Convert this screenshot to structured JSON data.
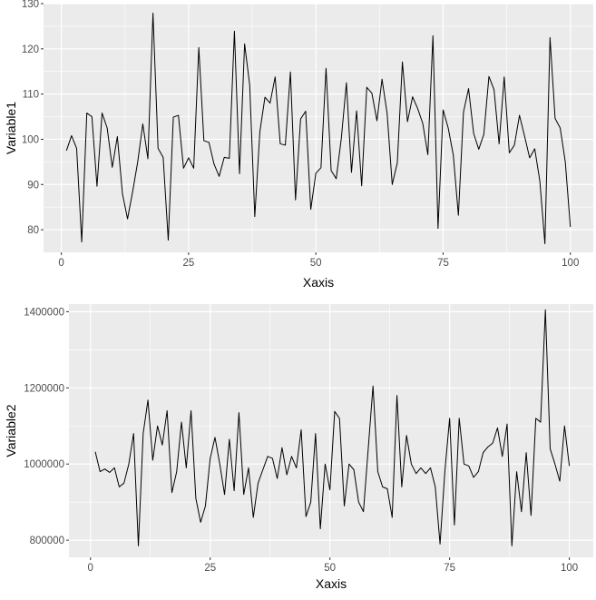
{
  "chart_data": [
    {
      "type": "line",
      "xlabel": "Xaxis",
      "ylabel": "Variable1",
      "xlim": [
        -3.5,
        104.5
      ],
      "ylim": [
        75,
        130
      ],
      "x_ticks": [
        0,
        25,
        50,
        75,
        100
      ],
      "x_tick_labels": [
        "0",
        "25",
        "50",
        "75",
        "100"
      ],
      "y_ticks": [
        80,
        90,
        100,
        110,
        120,
        130
      ],
      "y_tick_labels": [
        "80",
        "90",
        "100",
        "110",
        "120",
        "130"
      ],
      "grid": true,
      "legend": "none",
      "line_color": "#000000",
      "panel_color": "#ebebeb",
      "grid_color": "#ffffff",
      "series": [
        {
          "x": [
            1,
            2,
            3,
            4,
            5,
            6,
            7,
            8,
            9,
            10,
            11,
            12,
            13,
            14,
            15,
            16,
            17,
            18,
            19,
            20,
            21,
            22,
            23,
            24,
            25,
            26,
            27,
            28,
            29,
            30,
            31,
            32,
            33,
            34,
            35,
            36,
            37,
            38,
            39,
            40,
            41,
            42,
            43,
            44,
            45,
            46,
            47,
            48,
            49,
            50,
            51,
            52,
            53,
            54,
            55,
            56,
            57,
            58,
            59,
            60,
            61,
            62,
            63,
            64,
            65,
            66,
            67,
            68,
            69,
            70,
            71,
            72,
            73,
            74,
            75,
            76,
            77,
            78,
            79,
            80,
            81,
            82,
            83,
            84,
            85,
            86,
            87,
            88,
            89,
            90,
            91,
            92,
            93,
            94,
            95,
            96,
            97,
            98,
            99,
            100
          ],
          "y": [
            97.5,
            100.8,
            98.0,
            77.3,
            105.8,
            105.0,
            89.6,
            105.8,
            102.5,
            93.8,
            100.6,
            88.0,
            82.4,
            88.4,
            95.0,
            103.4,
            95.7,
            127.9,
            98.0,
            96.0,
            77.7,
            104.9,
            105.3,
            93.6,
            95.9,
            93.6,
            120.3,
            99.7,
            99.3,
            94.5,
            91.8,
            96.0,
            95.8,
            123.9,
            92.4,
            121.1,
            112.0,
            82.9,
            101.7,
            109.3,
            108.0,
            113.8,
            99.0,
            98.7,
            114.9,
            86.6,
            104.5,
            106.2,
            84.5,
            92.5,
            93.7,
            115.7,
            93.1,
            91.3,
            100.2,
            112.5,
            92.7,
            106.3,
            89.7,
            111.5,
            110.2,
            104.1,
            113.3,
            105.7,
            90.0,
            94.8,
            117.1,
            103.9,
            109.4,
            106.8,
            103.5,
            96.6,
            122.9,
            80.3,
            106.5,
            102.5,
            96.5,
            83.2,
            106.0,
            111.2,
            101.3,
            97.8,
            101.1,
            113.9,
            111.0,
            99.0,
            113.8,
            97.0,
            98.7,
            105.3,
            100.7,
            95.9,
            97.9,
            90.8,
            76.9,
            122.5,
            104.6,
            102.5,
            95.0,
            80.6
          ]
        }
      ]
    },
    {
      "type": "line",
      "xlabel": "Xaxis",
      "ylabel": "Variable2",
      "xlim": [
        -4.5,
        105.0
      ],
      "ylim": [
        755000,
        1420000
      ],
      "x_ticks": [
        0,
        25,
        50,
        75,
        100
      ],
      "x_tick_labels": [
        "0",
        "25",
        "50",
        "75",
        "100"
      ],
      "y_ticks": [
        800000,
        1000000,
        1200000,
        1400000
      ],
      "y_tick_labels": [
        "800000",
        "1000000",
        "1200000",
        "1400000"
      ],
      "grid": true,
      "legend": "none",
      "line_color": "#000000",
      "panel_color": "#ebebeb",
      "grid_color": "#ffffff",
      "series": [
        {
          "x": [
            1,
            2,
            3,
            4,
            5,
            6,
            7,
            8,
            9,
            10,
            11,
            12,
            13,
            14,
            15,
            16,
            17,
            18,
            19,
            20,
            21,
            22,
            23,
            24,
            25,
            26,
            27,
            28,
            29,
            30,
            31,
            32,
            33,
            34,
            35,
            36,
            37,
            38,
            39,
            40,
            41,
            42,
            43,
            44,
            45,
            46,
            47,
            48,
            49,
            50,
            51,
            52,
            53,
            54,
            55,
            56,
            57,
            58,
            59,
            60,
            61,
            62,
            63,
            64,
            65,
            66,
            67,
            68,
            69,
            70,
            71,
            72,
            73,
            74,
            75,
            76,
            77,
            78,
            79,
            80,
            81,
            82,
            83,
            84,
            85,
            86,
            87,
            88,
            89,
            90,
            91,
            92,
            93,
            94,
            95,
            96,
            97,
            98,
            99,
            100
          ],
          "y": [
            1032000,
            980000,
            987000,
            978000,
            990000,
            940000,
            950000,
            1000000,
            1080000,
            785000,
            1080000,
            1168000,
            1010000,
            1100000,
            1050000,
            1140000,
            925000,
            980000,
            1110000,
            990000,
            1140000,
            910000,
            847000,
            890000,
            1015000,
            1070000,
            1000000,
            920000,
            1065000,
            930000,
            1135000,
            920000,
            990000,
            860000,
            950000,
            985000,
            1020000,
            1015000,
            962000,
            1043000,
            972000,
            1020000,
            990000,
            1090000,
            862000,
            900000,
            1080000,
            830000,
            1000000,
            932000,
            1138000,
            1120000,
            890000,
            1000000,
            985000,
            900000,
            875000,
            1040000,
            1205000,
            980000,
            940000,
            935000,
            860000,
            1180000,
            940000,
            1075000,
            1000000,
            975000,
            990000,
            975000,
            990000,
            940000,
            790000,
            980000,
            1120000,
            840000,
            1120000,
            1000000,
            995000,
            965000,
            980000,
            1030000,
            1045000,
            1055000,
            1095000,
            1020000,
            1105000,
            785000,
            980000,
            875000,
            1030000,
            865000,
            1120000,
            1110000,
            1405000,
            1040000,
            1000000,
            955000,
            1100000,
            995000
          ]
        }
      ]
    }
  ]
}
